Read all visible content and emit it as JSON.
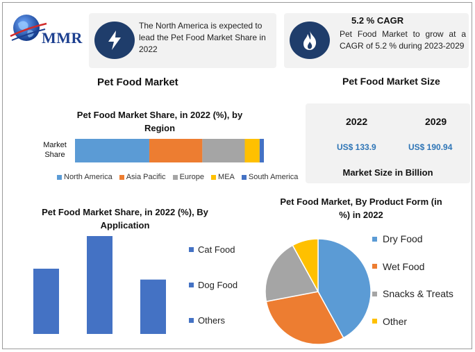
{
  "logo": {
    "text": "MMR"
  },
  "card_region": {
    "icon": "lightning-icon",
    "text": "The North America is expected to lead the Pet Food Market Share in 2022"
  },
  "card_cagr": {
    "icon": "flame-icon",
    "title": "5.2 % CAGR",
    "text": "Pet Food Market to grow at a CAGR of 5.2 % during 2023-2029"
  },
  "headings": {
    "left": "Pet Food Market",
    "right": "Pet Food Market Size"
  },
  "market_size": {
    "years": [
      "2022",
      "2029"
    ],
    "values": [
      "US$ 133.9",
      "US$ 190.94"
    ],
    "caption": "Market Size in Billion"
  },
  "colors": {
    "blue": "#5b9bd5",
    "orange": "#ed7d31",
    "gray": "#a5a5a5",
    "yellow": "#ffc000",
    "navy": "#4472c4",
    "icon_bg": "#1f3d6b",
    "value_blue": "#2e75b6"
  },
  "chart_data": [
    {
      "type": "bar",
      "orientation": "horizontal-stacked",
      "title": "Pet Food Market Share, in 2022 (%), by Region",
      "categories": [
        "Market Share"
      ],
      "series": [
        {
          "name": "North America",
          "values": [
            35
          ],
          "color": "#5b9bd5"
        },
        {
          "name": "Asia Pacific",
          "values": [
            25
          ],
          "color": "#ed7d31"
        },
        {
          "name": "Europe",
          "values": [
            20
          ],
          "color": "#a5a5a5"
        },
        {
          "name": "MEA",
          "values": [
            7
          ],
          "color": "#ffc000"
        },
        {
          "name": "South America",
          "values": [
            2
          ],
          "color": "#4472c4"
        }
      ],
      "legend": "bottom"
    },
    {
      "type": "bar",
      "title": "Pet Food Market Share, in 2022 (%), By Application",
      "categories": [
        "Cat Food",
        "Dog Food",
        "Others"
      ],
      "values": [
        30,
        45,
        25
      ],
      "ylim": [
        0,
        45
      ],
      "color": "#4472c4",
      "legend": "right"
    },
    {
      "type": "pie",
      "title": "Pet Food Market, By Product Form (in %) in 2022",
      "categories": [
        "Dry Food",
        "Wet Food",
        "Snacks & Treats",
        "Other"
      ],
      "values": [
        42,
        30,
        20,
        8
      ],
      "colors": [
        "#5b9bd5",
        "#ed7d31",
        "#a5a5a5",
        "#ffc000"
      ],
      "legend": "right"
    }
  ]
}
